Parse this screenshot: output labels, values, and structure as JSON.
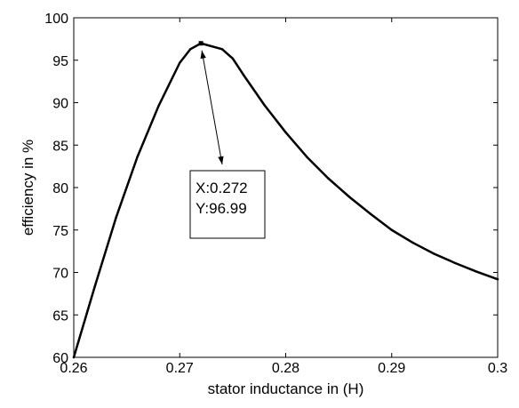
{
  "chart_data": {
    "type": "line",
    "xlabel": "stator inductance in (H)",
    "ylabel": "efficiency in %",
    "xlim": [
      0.26,
      0.3
    ],
    "ylim": [
      60,
      100
    ],
    "xticks": [
      0.26,
      0.27,
      0.28,
      0.29,
      0.3
    ],
    "xtick_labels": [
      "0.26",
      "0.27",
      "0.28",
      "0.29",
      "0.3"
    ],
    "yticks": [
      60,
      65,
      70,
      75,
      80,
      85,
      90,
      95,
      100
    ],
    "ytick_labels": [
      "60",
      "65",
      "70",
      "75",
      "80",
      "85",
      "90",
      "95",
      "100"
    ],
    "grid": false,
    "series": [
      {
        "x": [
          0.26,
          0.262,
          0.264,
          0.266,
          0.268,
          0.27,
          0.271,
          0.272,
          0.274,
          0.275,
          0.276,
          0.278,
          0.28,
          0.282,
          0.284,
          0.286,
          0.288,
          0.29,
          0.292,
          0.294,
          0.296,
          0.298,
          0.3
        ],
        "y": [
          60.0,
          68.4,
          76.5,
          83.6,
          89.6,
          94.7,
          96.3,
          96.99,
          96.3,
          95.2,
          93.3,
          89.7,
          86.5,
          83.6,
          81.1,
          78.9,
          76.9,
          75.0,
          73.5,
          72.2,
          71.1,
          70.1,
          69.2
        ],
        "color": "#000000"
      }
    ],
    "annotations": [
      {
        "type": "datatip",
        "x": 0.272,
        "y": 96.99,
        "lines": [
          "X:0.272",
          "Y:96.99"
        ]
      }
    ]
  }
}
